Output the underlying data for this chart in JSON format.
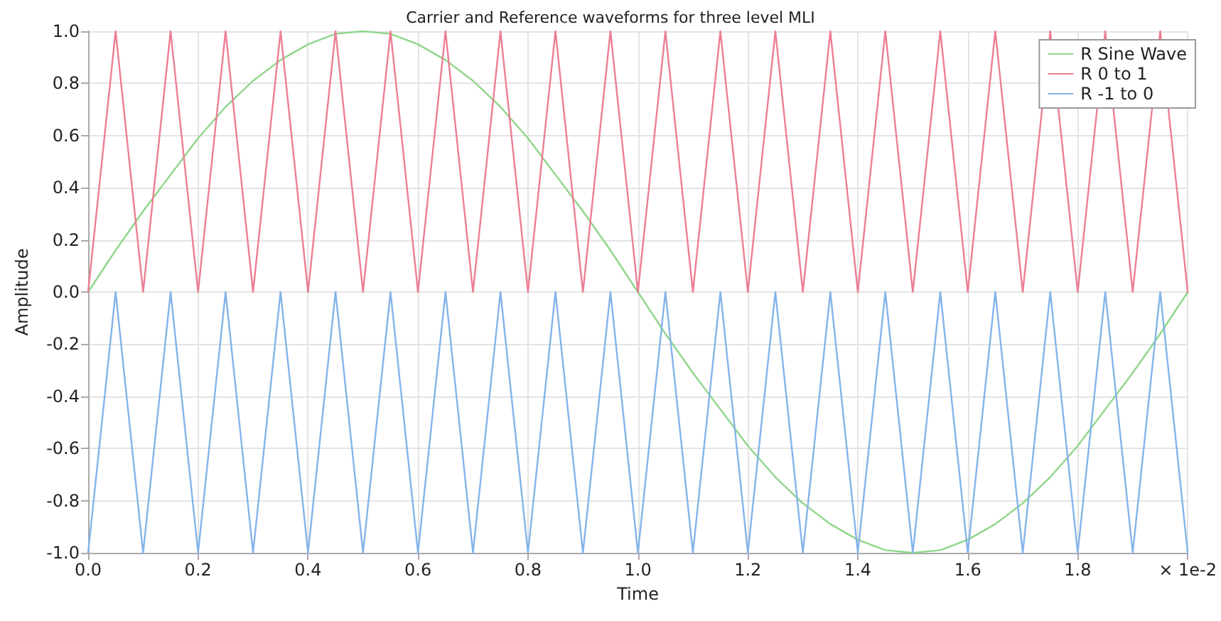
{
  "chart_data": {
    "type": "line",
    "title": "Carrier and Reference waveforms for three level MLI",
    "xlabel": "Time",
    "ylabel": "Amplitude",
    "x": [
      0,
      0.05,
      0.1,
      0.15,
      0.2,
      0.25,
      0.3,
      0.35,
      0.4,
      0.45,
      0.5,
      0.55,
      0.6,
      0.65,
      0.7,
      0.75,
      0.8,
      0.85,
      0.9,
      0.95,
      1,
      1.05,
      1.1,
      1.15,
      1.2,
      1.25,
      1.3,
      1.35,
      1.4,
      1.45,
      1.5,
      1.55,
      1.6,
      1.65,
      1.7,
      1.75,
      1.8,
      1.85,
      1.9,
      1.95,
      2
    ],
    "series": [
      {
        "name": "R Sine Wave",
        "color": "#8fd68a",
        "values": [
          0,
          0.16,
          0.31,
          0.45,
          0.59,
          0.71,
          0.81,
          0.89,
          0.95,
          0.99,
          1,
          0.99,
          0.95,
          0.89,
          0.81,
          0.71,
          0.59,
          0.45,
          0.31,
          0.16,
          0,
          -0.16,
          -0.31,
          -0.45,
          -0.59,
          -0.71,
          -0.81,
          -0.89,
          -0.95,
          -0.99,
          -1,
          -0.99,
          -0.95,
          -0.89,
          -0.81,
          -0.71,
          -0.59,
          -0.45,
          -0.31,
          -0.16,
          0
        ]
      },
      {
        "name": "R 0 to 1",
        "color": "#ec7f93",
        "values": [
          0,
          1,
          0,
          1,
          0,
          1,
          0,
          1,
          0,
          1,
          0,
          1,
          0,
          1,
          0,
          1,
          0,
          1,
          0,
          1,
          0,
          1,
          0,
          1,
          0,
          1,
          0,
          1,
          0,
          1,
          0,
          1,
          0,
          1,
          0,
          1,
          0,
          1,
          0,
          1,
          0
        ]
      },
      {
        "name": "R -1 to 0",
        "color": "#84b4ea",
        "values": [
          -1,
          0,
          -1,
          0,
          -1,
          0,
          -1,
          0,
          -1,
          0,
          -1,
          0,
          -1,
          0,
          -1,
          0,
          -1,
          0,
          -1,
          0,
          -1,
          0,
          -1,
          0,
          -1,
          0,
          -1,
          0,
          -1,
          0,
          -1,
          0,
          -1,
          0,
          -1,
          0,
          -1,
          0,
          -1,
          0,
          -1
        ]
      }
    ],
    "xlim": [
      0,
      2
    ],
    "xticks": [
      {
        "value": 0,
        "label": "0.0"
      },
      {
        "value": 0.2,
        "label": "0.2"
      },
      {
        "value": 0.4,
        "label": "0.4"
      },
      {
        "value": 0.6,
        "label": "0.6"
      },
      {
        "value": 0.8,
        "label": "0.8"
      },
      {
        "value": 1,
        "label": "1.0"
      },
      {
        "value": 1.2,
        "label": "1.2"
      },
      {
        "value": 1.4,
        "label": "1.4"
      },
      {
        "value": 1.6,
        "label": "1.6"
      },
      {
        "value": 1.8,
        "label": "1.8"
      },
      {
        "value": 2,
        "label": "× 1e-2"
      }
    ],
    "ylim": [
      -1,
      1
    ],
    "yticks": [
      {
        "value": -1,
        "label": "-1.0"
      },
      {
        "value": -0.8,
        "label": "-0.8"
      },
      {
        "value": -0.6,
        "label": "-0.6"
      },
      {
        "value": -0.4,
        "label": "-0.4"
      },
      {
        "value": -0.2,
        "label": "-0.2"
      },
      {
        "value": 0,
        "label": "0.0"
      },
      {
        "value": 0.2,
        "label": "0.2"
      },
      {
        "value": 0.4,
        "label": "0.4"
      },
      {
        "value": 0.6,
        "label": "0.6"
      },
      {
        "value": 0.8,
        "label": "0.8"
      },
      {
        "value": 1,
        "label": "1.0"
      }
    ],
    "grid": true,
    "legend": "top right",
    "marker": "none",
    "line_style": "solid"
  }
}
